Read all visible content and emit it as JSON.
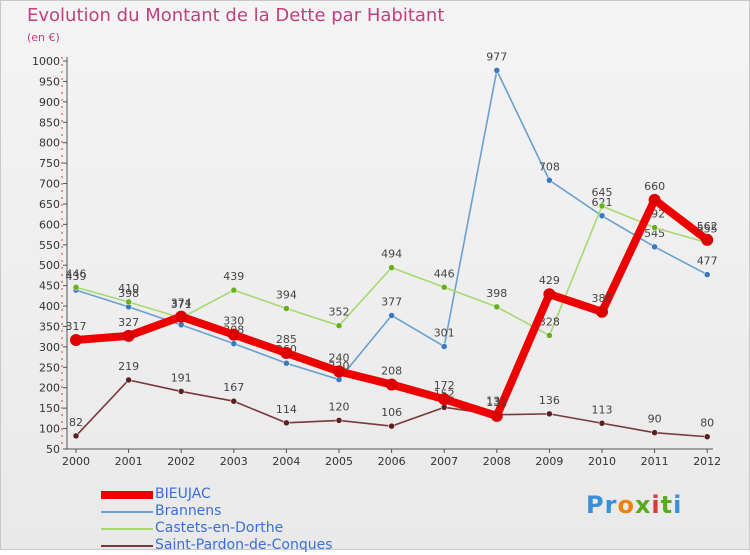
{
  "title": "Evolution du Montant de la Dette par Habitant",
  "subtitle": "(en €)",
  "logo": "Proxiti",
  "colors": {
    "title": "#c04080",
    "axis": "#555555",
    "legend_text": "#3a6fd8",
    "logo_letters": [
      "#3a8fd8",
      "#3a8fd8",
      "#f08010",
      "#5aaa20",
      "#d83a3a",
      "#5aaa20",
      "#3a8fd8"
    ]
  },
  "chart_data": {
    "type": "line",
    "x": [
      "2000",
      "2001",
      "2002",
      "2003",
      "2004",
      "2005",
      "2006",
      "2007",
      "2008",
      "2009",
      "2010",
      "2011",
      "2012"
    ],
    "ylim": [
      50,
      1000
    ],
    "yticks": [
      50,
      100,
      150,
      200,
      250,
      300,
      350,
      400,
      450,
      500,
      550,
      600,
      650,
      700,
      750,
      800,
      850,
      900,
      950,
      1000
    ],
    "grid": false,
    "legend_position": "bottom-left",
    "series": [
      {
        "name": "Brannens",
        "color": "#6aa0d0",
        "marker_color": "#3a78c0",
        "values": [
          439,
          398,
          354,
          308,
          260,
          220,
          377,
          301,
          977,
          708,
          621,
          545,
          477
        ],
        "labels": [
          "439",
          "398",
          "",
          "308",
          "260",
          "220",
          "377",
          "301",
          "977",
          "708",
          "621",
          "545",
          "477"
        ]
      },
      {
        "name": "Castets-en-Dorthe",
        "color": "#a8d870",
        "marker_color": "#66b020",
        "values": [
          446,
          410,
          371,
          439,
          394,
          352,
          494,
          446,
          398,
          328,
          645,
          592,
          555
        ],
        "labels": [
          "446",
          "410",
          "371",
          "439",
          "394",
          "352",
          "494",
          "446",
          "398",
          "328",
          "645",
          "592",
          "555"
        ]
      },
      {
        "name": "Saint-Pardon-de-Conques",
        "color": "#7a3838",
        "marker_color": "#5a2020",
        "values": [
          82,
          219,
          191,
          167,
          114,
          120,
          106,
          152,
          134,
          136,
          113,
          90,
          80
        ],
        "labels": [
          "82",
          "219",
          "191",
          "167",
          "114",
          "120",
          "106",
          "152",
          "134",
          "136",
          "113",
          "90",
          "80"
        ]
      },
      {
        "name": "BIEUJAC",
        "color": "#ee0000",
        "marker_color": "#dd0000",
        "values": [
          317,
          327,
          374,
          330,
          285,
          240,
          208,
          172,
          131,
          429,
          386,
          660,
          562
        ],
        "labels": [
          "317",
          "327",
          "374",
          "330",
          "285",
          "240",
          "208",
          "172",
          "131",
          "429",
          "386",
          "660",
          "562"
        ]
      }
    ]
  },
  "legend": [
    {
      "name": "BIEUJAC",
      "color": "#ee0000",
      "thickness": 8
    },
    {
      "name": "Brannens",
      "color": "#6aa0d0",
      "thickness": 2
    },
    {
      "name": "Castets-en-Dorthe",
      "color": "#a8d870",
      "thickness": 2
    },
    {
      "name": "Saint-Pardon-de-Conques",
      "color": "#7a3838",
      "thickness": 2
    }
  ]
}
